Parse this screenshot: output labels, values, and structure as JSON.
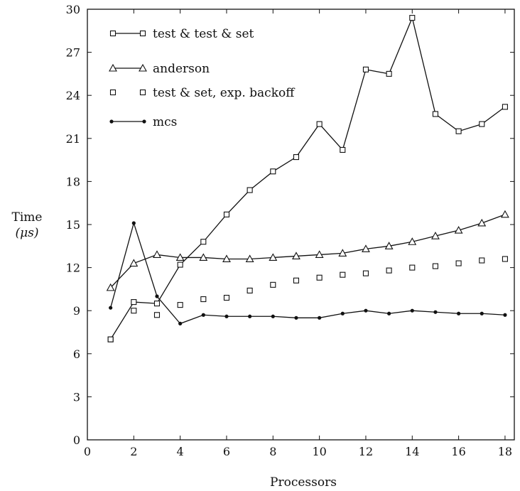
{
  "chart_data": {
    "type": "line",
    "title": "",
    "xlabel": "Processors",
    "ylabel": "Time",
    "ylabel_unit": "(μs)",
    "xlim": [
      0,
      18.4
    ],
    "ylim": [
      0,
      30
    ],
    "xticks": [
      0,
      2,
      4,
      6,
      8,
      10,
      12,
      14,
      16,
      18
    ],
    "yticks": [
      0,
      3,
      6,
      9,
      12,
      15,
      18,
      21,
      24,
      27,
      30
    ],
    "grid": false,
    "legend_position": "top-left",
    "series": [
      {
        "name": "test & test & set",
        "marker": "square",
        "line": "solid",
        "x": [
          1,
          2,
          3,
          4,
          5,
          6,
          7,
          8,
          9,
          10,
          11,
          12,
          13,
          14,
          15,
          16,
          17,
          18
        ],
        "y": [
          7.0,
          9.6,
          9.5,
          12.2,
          13.8,
          15.7,
          17.4,
          18.7,
          19.7,
          22.0,
          20.2,
          25.8,
          25.5,
          29.4,
          22.7,
          21.5,
          22.0,
          23.2
        ]
      },
      {
        "name": "anderson",
        "marker": "triangle",
        "line": "solid",
        "x": [
          1,
          2,
          3,
          4,
          5,
          6,
          7,
          8,
          9,
          10,
          11,
          12,
          13,
          14,
          15,
          16,
          17,
          18
        ],
        "y": [
          10.6,
          12.3,
          12.9,
          12.7,
          12.7,
          12.6,
          12.6,
          12.7,
          12.8,
          12.9,
          13.0,
          13.3,
          13.5,
          13.8,
          14.2,
          14.6,
          15.1,
          15.7
        ]
      },
      {
        "name": "test & set, exp. backoff",
        "marker": "square",
        "line": "none",
        "x": [
          1,
          2,
          3,
          4,
          5,
          6,
          7,
          8,
          9,
          10,
          11,
          12,
          13,
          14,
          15,
          16,
          17,
          18
        ],
        "y": [
          7.0,
          9.0,
          8.7,
          9.4,
          9.8,
          9.9,
          10.4,
          10.8,
          11.1,
          11.3,
          11.5,
          11.6,
          11.8,
          12.0,
          12.1,
          12.3,
          12.5,
          12.6
        ]
      },
      {
        "name": "mcs",
        "marker": "dot",
        "line": "solid",
        "x": [
          1,
          2,
          3,
          4,
          5,
          6,
          7,
          8,
          9,
          10,
          11,
          12,
          13,
          14,
          15,
          16,
          17,
          18
        ],
        "y": [
          9.2,
          15.1,
          10.0,
          8.1,
          8.7,
          8.6,
          8.6,
          8.6,
          8.5,
          8.5,
          8.8,
          9.0,
          8.8,
          9.0,
          8.9,
          8.8,
          8.8,
          8.7
        ]
      }
    ]
  }
}
